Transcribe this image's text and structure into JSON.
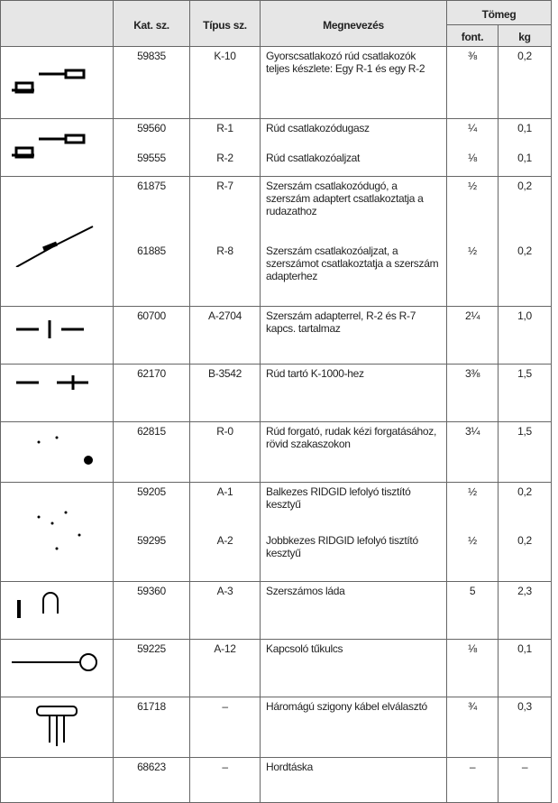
{
  "table": {
    "header": {
      "kat": "Kat. sz.",
      "tipus": "Típus sz.",
      "megnevezes": "Megnevezés",
      "tomeg": "Tömeg",
      "font": "font.",
      "kg": "kg"
    },
    "groups": [
      {
        "rows": [
          [
            "59835",
            "K-10",
            "Gyorscsatlakozó rúd csatlakozók teljes készlete: Egy R-1 és egy R-2",
            "⅜",
            "0,2"
          ]
        ]
      },
      {
        "rows": [
          [
            "59560",
            "R-1",
            "Rúd csatlakozódugasz",
            "¼",
            "0,1"
          ],
          [
            "59555",
            "R-2",
            "Rúd csatlakozóaljzat",
            "⅛",
            "0,1"
          ]
        ]
      },
      {
        "rows": [
          [
            "61875",
            "R-7",
            "Szerszám csatlakozódugó, a szerszám adaptert csatlakoztatja a rudazathoz",
            "½",
            "0,2"
          ],
          [
            "61885",
            "R-8",
            "Szerszám csatlakozóaljzat, a szerszámot csatlakoztatja a szerszám adapterhez",
            "½",
            "0,2"
          ]
        ]
      },
      {
        "rows": [
          [
            "60700",
            "A-2704",
            "Szerszám adapterrel, R-2 és R-7 kapcs. tartalmaz",
            "2¼",
            "1,0"
          ]
        ]
      },
      {
        "rows": [
          [
            "62170",
            "B-3542",
            "Rúd tartó K-1000-hez",
            "3⅜",
            "1,5"
          ]
        ]
      },
      {
        "rows": [
          [
            "62815",
            "R-0",
            "Rúd forgató, rudak kézi forgatásához, rövid szakaszokon",
            "3¼",
            "1,5"
          ]
        ]
      },
      {
        "rows": [
          [
            "59205",
            "A-1",
            "Balkezes RIDGID lefolyó tisztító kesztyű",
            "½",
            "0,2"
          ],
          [
            "59295",
            "A-2",
            "Jobbkezes RIDGID lefolyó tisztító kesztyű",
            "½",
            "0,2"
          ]
        ]
      },
      {
        "rows": [
          [
            "59360",
            "A-3",
            "Szerszámos láda",
            "5",
            "2,3"
          ]
        ]
      },
      {
        "rows": [
          [
            "59225",
            "A-12",
            "Kapcsoló tűkulcs",
            "⅛",
            "0,1"
          ]
        ]
      },
      {
        "rows": [
          [
            "61718",
            "–",
            "Háromágú szigony kábel elválasztó",
            "¾",
            "0,3"
          ]
        ]
      },
      {
        "rows": [
          [
            "68623",
            "–",
            "Hordtáska",
            "–",
            "–"
          ]
        ]
      }
    ]
  }
}
